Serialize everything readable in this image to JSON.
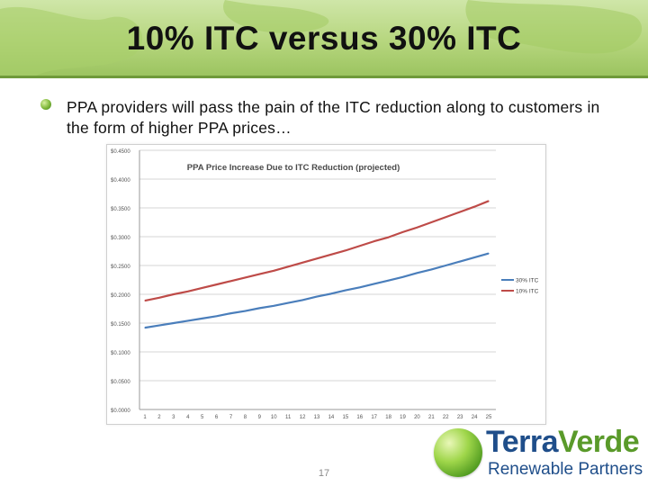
{
  "slide": {
    "title": "10% ITC versus 30% ITC",
    "bullet": "PPA providers will pass the pain of the ITC reduction along to customers in the form of higher PPA prices…",
    "page_number": "17"
  },
  "logo": {
    "brand_part1": "Terra",
    "brand_part2": "Verde",
    "tagline": "Renewable Partners"
  },
  "colors": {
    "accent_green": "#6f9a3a",
    "series_30": "#4a7ebb",
    "series_10": "#be4b48",
    "logo_blue": "#1f4e8a"
  },
  "chart_data": {
    "type": "line",
    "title": "PPA Price Increase Due to ITC Reduction (projected)",
    "x": [
      1,
      2,
      3,
      4,
      5,
      6,
      7,
      8,
      9,
      10,
      11,
      12,
      13,
      14,
      15,
      16,
      17,
      18,
      19,
      20,
      21,
      22,
      23,
      24,
      25
    ],
    "ylim": [
      0.0,
      0.45
    ],
    "yticks": [
      0.0,
      0.05,
      0.1,
      0.15,
      0.2,
      0.25,
      0.3,
      0.35,
      0.4,
      0.45
    ],
    "ytick_labels": [
      "$0.0000",
      "$0.0500",
      "$0.1000",
      "$0.1500",
      "$0.2000",
      "$0.2500",
      "$0.3000",
      "$0.3500",
      "$0.4000",
      "$0.4500"
    ],
    "grid": true,
    "legend": "right",
    "series": [
      {
        "name": "30% ITC",
        "color": "#4a7ebb",
        "values": [
          0.142,
          0.146,
          0.15,
          0.154,
          0.158,
          0.162,
          0.167,
          0.171,
          0.176,
          0.18,
          0.185,
          0.19,
          0.196,
          0.201,
          0.207,
          0.212,
          0.218,
          0.224,
          0.23,
          0.237,
          0.243,
          0.25,
          0.257,
          0.264,
          0.271
        ]
      },
      {
        "name": "10% ITC",
        "color": "#be4b48",
        "values": [
          0.189,
          0.194,
          0.2,
          0.205,
          0.211,
          0.217,
          0.223,
          0.229,
          0.235,
          0.241,
          0.248,
          0.255,
          0.262,
          0.269,
          0.276,
          0.284,
          0.292,
          0.299,
          0.308,
          0.316,
          0.325,
          0.334,
          0.343,
          0.352,
          0.362
        ]
      }
    ]
  }
}
